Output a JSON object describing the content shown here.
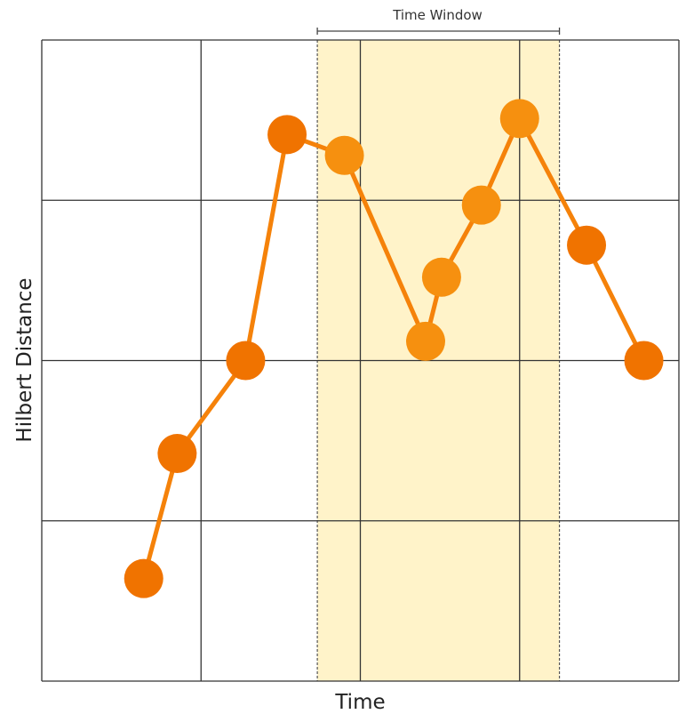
{
  "chart_data": {
    "type": "line",
    "title": "",
    "xlabel": "Time",
    "ylabel": "Hilbert Distance",
    "xlim": [
      0,
      4
    ],
    "ylim": [
      0,
      4
    ],
    "grid": true,
    "gridlines": {
      "x": [
        0,
        1,
        2,
        3,
        4
      ],
      "y": [
        0,
        1,
        2,
        3,
        4
      ]
    },
    "x_tick_labels": [],
    "y_tick_labels": [],
    "series": [
      {
        "name": "Hilbert Distance",
        "x": [
          0.64,
          0.85,
          1.28,
          1.54,
          1.9,
          2.41,
          2.51,
          2.76,
          3.0,
          3.42,
          3.78
        ],
        "values": [
          0.64,
          1.42,
          2.0,
          3.41,
          3.28,
          2.12,
          2.52,
          2.97,
          3.51,
          2.72,
          2.0
        ]
      }
    ],
    "annotations": [
      {
        "type": "shaded_region",
        "label": "Time Window",
        "x_start": 1.73,
        "x_end": 3.25
      }
    ],
    "legend": null
  },
  "labels": {
    "x_axis": "Time",
    "y_axis": "Hilbert Distance",
    "window": "Time Window"
  },
  "colors": {
    "point_outside": "#F07300",
    "point_inside": "#F6900F",
    "line": "#F5820A",
    "window_fill": "#FFF3C9",
    "grid": "#333333"
  }
}
